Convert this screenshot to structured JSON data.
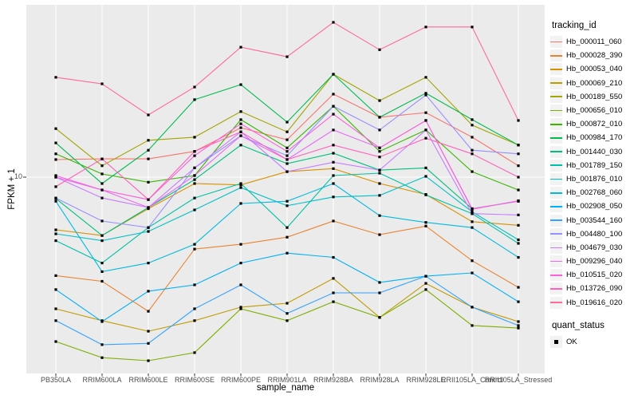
{
  "figure": {
    "y_axis": {
      "title": "FPKM + 1",
      "tick_label": "10"
    },
    "x_axis": {
      "title": "sample_name"
    },
    "legend": {
      "tracking_title": "tracking_id",
      "quant_title": "quant_status",
      "quant_items": [
        {
          "label": "OK",
          "marker": "filled-black-square"
        }
      ]
    },
    "colors": {
      "panel_bg": "#EBEBEB",
      "grid": "#FFFFFF",
      "tick_text": "#4D4D4D",
      "tick_mark": "#333333",
      "point": "#000000",
      "legend_key_bg": "#F2F2F2"
    }
  },
  "chart_data": {
    "type": "line",
    "title": "",
    "xlabel": "sample_name",
    "ylabel": "FPKM + 1",
    "y_scale": "log10",
    "ylim": [
      0.9,
      82
    ],
    "y_ticks": [
      10
    ],
    "grid": "major-only",
    "legend_position": "right",
    "point_marker": "small black square (quant_status = OK)",
    "categories": [
      "PB350LA",
      "RRIM600LA",
      "RRIM600LE",
      "RRIM600SE",
      "RRIM600PE",
      "RRIM901LA",
      "RRIM928BA",
      "RRIM928LA",
      "RRIM928LE",
      "RRII105LA_Control",
      "RRII105LA_Stressed"
    ],
    "series": [
      {
        "name": "Hb_000011_060",
        "color": "#F8766D",
        "values": [
          12.4,
          12.5,
          12.5,
          13.7,
          18.3,
          15.8,
          27.6,
          20.8,
          22.0,
          16.3,
          11.5
        ]
      },
      {
        "name": "Hb_000028_390",
        "color": "#EA8331",
        "values": [
          3.0,
          2.8,
          1.94,
          4.15,
          4.4,
          4.8,
          5.85,
          4.95,
          5.5,
          3.6,
          2.6
        ]
      },
      {
        "name": "Hb_000053_040",
        "color": "#D89000",
        "values": [
          5.25,
          4.9,
          6.8,
          9.25,
          9.1,
          10.7,
          11.1,
          9.25,
          8.1,
          5.8,
          5.55
        ]
      },
      {
        "name": "Hb_000069_210",
        "color": "#C09B00",
        "values": [
          2.0,
          1.73,
          1.52,
          1.73,
          2.04,
          2.14,
          2.9,
          1.8,
          2.73,
          2.04,
          1.71
        ]
      },
      {
        "name": "Hb_000189_550",
        "color": "#A3A500",
        "values": [
          18.1,
          11.5,
          15.7,
          16.3,
          22.3,
          17.4,
          35.2,
          25.5,
          33.9,
          18.9,
          14.8
        ]
      },
      {
        "name": "Hb_000656_010",
        "color": "#7CAE00",
        "values": [
          1.34,
          1.1,
          1.06,
          1.17,
          2.0,
          1.73,
          2.18,
          1.8,
          2.53,
          1.63,
          1.58
        ]
      },
      {
        "name": "Hb_000872_010",
        "color": "#39B600",
        "values": [
          13.3,
          10.4,
          9.4,
          10.2,
          20.2,
          14.3,
          23.8,
          13.7,
          17.8,
          10.7,
          8.55
        ]
      },
      {
        "name": "Hb_000984_170",
        "color": "#00BB4E",
        "values": [
          15.2,
          9.25,
          13.9,
          25.8,
          31.0,
          19.6,
          35.2,
          20.8,
          27.9,
          20.2,
          14.8
        ]
      },
      {
        "name": "Hb_001440_030",
        "color": "#00BF7D",
        "values": [
          7.7,
          4.9,
          6.9,
          9.7,
          14.8,
          11.8,
          13.4,
          10.9,
          11.2,
          6.8,
          7.45
        ]
      },
      {
        "name": "Hb_001789_150",
        "color": "#00C1A3",
        "values": [
          4.6,
          3.5,
          5.4,
          7.75,
          9.25,
          5.4,
          10.2,
          10.5,
          8.05,
          6.4,
          4.45
        ]
      },
      {
        "name": "Hb_001876_010",
        "color": "#00BFC4",
        "values": [
          5.0,
          4.6,
          5.15,
          6.7,
          8.8,
          7.05,
          7.85,
          8.0,
          10.1,
          6.55,
          4.65
        ]
      },
      {
        "name": "Hb_002768_060",
        "color": "#00BAE0",
        "values": [
          7.45,
          3.15,
          3.5,
          4.4,
          7.25,
          7.45,
          9.25,
          6.25,
          5.75,
          5.4,
          3.75
        ]
      },
      {
        "name": "Hb_002908_050",
        "color": "#00B0F6",
        "values": [
          2.53,
          1.71,
          2.48,
          2.68,
          3.5,
          3.95,
          3.75,
          2.76,
          2.98,
          3.1,
          2.18
        ]
      },
      {
        "name": "Hb_003544_160",
        "color": "#35A2FF",
        "values": [
          1.73,
          1.29,
          1.31,
          2.0,
          2.68,
          1.89,
          2.43,
          2.43,
          2.98,
          2.04,
          1.63
        ]
      },
      {
        "name": "Hb_004480_100",
        "color": "#9590FF",
        "values": [
          7.75,
          5.85,
          5.4,
          11.2,
          16.6,
          13.0,
          23.8,
          17.8,
          27.3,
          13.9,
          13.3
        ]
      },
      {
        "name": "Hb_004679_030",
        "color": "#C77CFF",
        "values": [
          10.0,
          7.75,
          6.9,
          11.2,
          17.4,
          10.7,
          12.0,
          10.9,
          17.8,
          6.4,
          6.3
        ]
      },
      {
        "name": "Hb_009296_040",
        "color": "#E76BF3",
        "values": [
          10.0,
          8.55,
          6.9,
          10.2,
          16.6,
          12.4,
          17.8,
          14.3,
          20.0,
          6.8,
          7.45
        ]
      },
      {
        "name": "Hb_010515_020",
        "color": "#FA62DB",
        "values": [
          10.2,
          8.55,
          7.6,
          13.0,
          19.2,
          13.7,
          21.6,
          14.3,
          20.0,
          6.75,
          7.5
        ]
      },
      {
        "name": "Hb_013726_090",
        "color": "#FF62BC",
        "values": [
          8.9,
          12.5,
          7.6,
          13.7,
          17.4,
          12.4,
          14.8,
          12.8,
          16.1,
          13.3,
          10.0
        ]
      },
      {
        "name": "Hb_019616_020",
        "color": "#FF6A98",
        "values": [
          33.9,
          31.3,
          21.4,
          30.1,
          49.0,
          43.6,
          66.4,
          47.5,
          62.7,
          62.7,
          20.0
        ]
      }
    ]
  }
}
